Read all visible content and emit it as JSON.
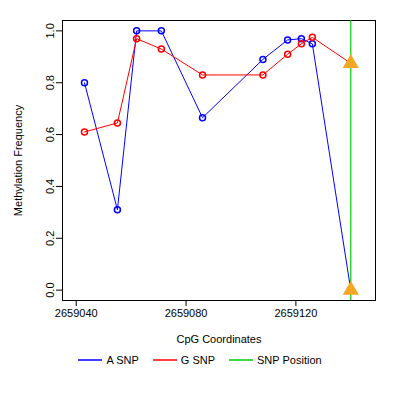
{
  "chart_data": {
    "type": "line",
    "x_label": "CpG Coordinates",
    "y_label": "Methylation Frequency",
    "xlim": [
      2659035,
      2659149
    ],
    "xticks": [
      2659040,
      2659080,
      2659120
    ],
    "ylim": [
      -0.04,
      1.04
    ],
    "yticks": [
      {
        "value": 0,
        "label": "0.0"
      },
      {
        "value": 0.2,
        "label": "0.2"
      },
      {
        "value": 0.4,
        "label": "0.4"
      },
      {
        "value": 0.6,
        "label": "0.6"
      },
      {
        "value": 0.8,
        "label": "0.8"
      },
      {
        "value": 1,
        "label": "1.0"
      }
    ],
    "legend": "bottom",
    "series": [
      {
        "name": "A SNP",
        "color": "#0000ff",
        "marker": "circle",
        "type": "line",
        "x": [
          2659043,
          2659055,
          2659062,
          2659071,
          2659086,
          2659108,
          2659117,
          2659122,
          2659126,
          2659140
        ],
        "values": [
          0.8,
          0.31,
          1.0,
          1.0,
          0.665,
          0.89,
          0.965,
          0.97,
          0.95,
          0.0
        ]
      },
      {
        "name": "G SNP",
        "color": "#ff0000",
        "marker": "circle",
        "type": "line",
        "x": [
          2659043,
          2659055,
          2659062,
          2659071,
          2659086,
          2659108,
          2659117,
          2659122,
          2659126,
          2659140
        ],
        "values": [
          0.61,
          0.645,
          0.97,
          0.93,
          0.83,
          0.83,
          0.91,
          0.95,
          0.975,
          0.875
        ]
      },
      {
        "name": "SNP Position",
        "color": "#00cc00",
        "type": "vline",
        "x": [
          2659140
        ]
      }
    ]
  }
}
